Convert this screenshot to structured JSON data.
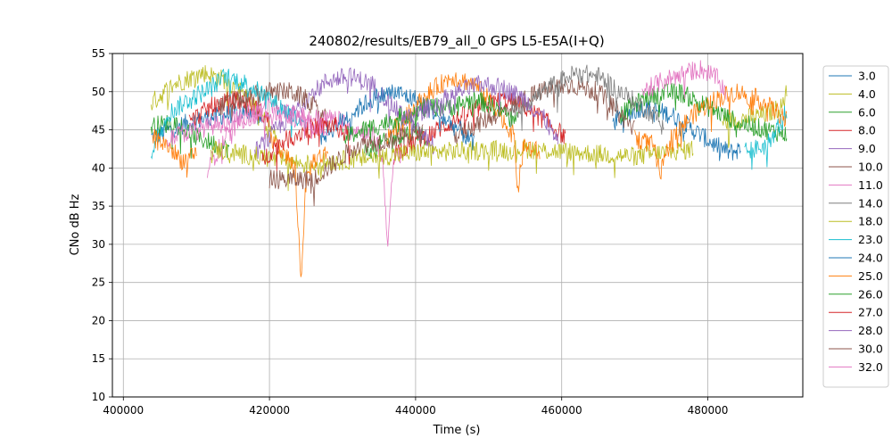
{
  "chart_data": {
    "type": "line",
    "title": "240802/results/EB79_all_0 GPS L5-E5A(I+Q)",
    "xlabel": "Time (s)",
    "ylabel": "CNo dB Hz",
    "xlim": [
      398500,
      493000
    ],
    "ylim": [
      10,
      55
    ],
    "xticks": [
      400000,
      420000,
      440000,
      460000,
      480000
    ],
    "yticks": [
      10,
      15,
      20,
      25,
      30,
      35,
      40,
      45,
      50,
      55
    ],
    "grid": true,
    "legend_position": "right-outside",
    "series": [
      {
        "name": "3.0",
        "color": "#1f77b4",
        "segments": [
          [
            [
              403800,
              44
            ],
            [
              409000,
              46
            ],
            [
              414000,
              47
            ],
            [
              418000,
              47.5
            ],
            [
              419000,
              46
            ]
          ],
          [
            [
              467000,
              46
            ],
            [
              471000,
              48
            ],
            [
              475000,
              47
            ],
            [
              478000,
              45
            ],
            [
              481000,
              43
            ],
            [
              483000,
              42
            ],
            [
              484500,
              42.5
            ]
          ]
        ]
      },
      {
        "name": "4.0",
        "color": "#bcbd22",
        "segments": [
          [
            [
              403800,
              48.5
            ],
            [
              407000,
              51
            ],
            [
              411000,
              52.5
            ],
            [
              414000,
              51.5
            ],
            [
              417000,
              49
            ],
            [
              419500,
              46
            ],
            [
              421000,
              44
            ]
          ],
          [
            [
              482000,
              46
            ],
            [
              485000,
              46.5
            ],
            [
              488000,
              47
            ],
            [
              490000,
              48
            ],
            [
              490800,
              50
            ]
          ]
        ]
      },
      {
        "name": "6.0",
        "color": "#2ca02c",
        "segments": [
          [
            [
              403800,
              45.5
            ],
            [
              407000,
              46
            ],
            [
              410000,
              44
            ],
            [
              413000,
              43
            ],
            [
              414500,
              42.5
            ]
          ],
          [
            [
              433000,
              42
            ],
            [
              437000,
              44
            ],
            [
              440000,
              45
            ],
            [
              441500,
              44
            ]
          ],
          [
            [
              468000,
              47
            ],
            [
              472000,
              49.5
            ],
            [
              476000,
              50
            ],
            [
              480000,
              48
            ],
            [
              484000,
              46
            ],
            [
              488000,
              45
            ],
            [
              490800,
              44.5
            ]
          ]
        ]
      },
      {
        "name": "8.0",
        "color": "#d62728",
        "segments": [
          [
            [
              409000,
              46
            ],
            [
              412000,
              48
            ],
            [
              415000,
              49
            ],
            [
              418000,
              48
            ],
            [
              420000,
              46
            ]
          ],
          [
            [
              437000,
              42
            ],
            [
              441000,
              44
            ],
            [
              445000,
              46
            ],
            [
              449000,
              48
            ],
            [
              452000,
              49
            ],
            [
              455000,
              48
            ],
            [
              458000,
              46
            ],
            [
              460500,
              44
            ]
          ]
        ]
      },
      {
        "name": "9.0",
        "color": "#9467bd",
        "segments": [
          [
            [
              418000,
              42
            ],
            [
              422000,
              46
            ],
            [
              425000,
              49
            ],
            [
              428000,
              51.5
            ],
            [
              431000,
              52
            ],
            [
              434000,
              51
            ],
            [
              437000,
              48
            ],
            [
              440000,
              45
            ],
            [
              442500,
              43
            ]
          ]
        ]
      },
      {
        "name": "10.0",
        "color": "#8c564b",
        "segments": [
          [
            [
              413000,
              48
            ],
            [
              416000,
              49
            ],
            [
              420000,
              50
            ],
            [
              423000,
              50
            ],
            [
              425000,
              49
            ],
            [
              428000,
              46
            ]
          ],
          [
            [
              445000,
              44
            ],
            [
              449000,
              46
            ],
            [
              453000,
              48
            ],
            [
              457000,
              50
            ],
            [
              461000,
              51
            ],
            [
              465000,
              50
            ],
            [
              468000,
              47
            ],
            [
              470000,
              45
            ]
          ]
        ]
      },
      {
        "name": "11.0",
        "color": "#e377c2",
        "segments": [
          [
            [
              411500,
              40
            ],
            [
              414000,
              44
            ],
            [
              417000,
              47
            ],
            [
              420000,
              48
            ],
            [
              423000,
              47
            ],
            [
              426000,
              46.5
            ],
            [
              429000,
              46.5
            ],
            [
              432000,
              45
            ],
            [
              434500,
              44
            ],
            [
              435500,
              41
            ],
            [
              436200,
              30
            ],
            [
              437000,
              41
            ],
            [
              438000,
              42
            ]
          ],
          [
            [
              471000,
              50
            ],
            [
              474000,
              51.5
            ],
            [
              477000,
              52.5
            ],
            [
              479000,
              53
            ],
            [
              481000,
              52
            ],
            [
              482500,
              50
            ]
          ]
        ]
      },
      {
        "name": "14.0",
        "color": "#7f7f7f",
        "segments": [
          [
            [
              453000,
              47
            ],
            [
              456000,
              49
            ],
            [
              459000,
              51
            ],
            [
              462000,
              52.5
            ],
            [
              465000,
              52
            ],
            [
              468000,
              50
            ],
            [
              471000,
              48
            ],
            [
              474000,
              46
            ]
          ]
        ]
      },
      {
        "name": "18.0",
        "color": "#bcbd22",
        "segments": [
          [
            [
              412000,
              42.5
            ],
            [
              425000,
              40.5
            ],
            [
              440000,
              42
            ],
            [
              455000,
              42.5
            ],
            [
              470000,
              41.5
            ],
            [
              478000,
              42.5
            ]
          ]
        ]
      },
      {
        "name": "23.0",
        "color": "#17becf",
        "segments": [
          [
            [
              403800,
              42
            ],
            [
              406000,
              47
            ],
            [
              409000,
              49
            ],
            [
              412000,
              50.5
            ],
            [
              414000,
              52
            ],
            [
              417000,
              51
            ],
            [
              420000,
              49
            ],
            [
              423000,
              47
            ],
            [
              425000,
              45
            ]
          ],
          [
            [
              485000,
              42
            ],
            [
              488000,
              43
            ],
            [
              490000,
              46
            ],
            [
              490800,
              47.5
            ]
          ]
        ]
      },
      {
        "name": "24.0",
        "color": "#1f77b4",
        "segments": [
          [
            [
              427000,
              44
            ],
            [
              431000,
              47
            ],
            [
              434000,
              49
            ],
            [
              437000,
              50
            ],
            [
              440000,
              49
            ],
            [
              443000,
              47
            ],
            [
              446000,
              45
            ],
            [
              448000,
              43
            ]
          ]
        ]
      },
      {
        "name": "25.0",
        "color": "#ff7f0e",
        "segments": [
          [
            [
              404000,
              44
            ],
            [
              406000,
              43
            ],
            [
              408000,
              41
            ],
            [
              410000,
              41.5
            ]
          ],
          [
            [
              420000,
              44
            ],
            [
              422000,
              42
            ],
            [
              423500,
              40
            ],
            [
              424300,
              25.5
            ],
            [
              425000,
              38
            ],
            [
              426000,
              41
            ],
            [
              428000,
              42
            ]
          ],
          [
            [
              436000,
              44
            ],
            [
              439000,
              47
            ],
            [
              442000,
              50
            ],
            [
              445000,
              52
            ],
            [
              448000,
              51
            ],
            [
              451000,
              48
            ],
            [
              453500,
              44
            ],
            [
              454000,
              37
            ],
            [
              454800,
              43
            ],
            [
              457000,
              42
            ]
          ],
          [
            [
              470000,
              44
            ],
            [
              472500,
              43
            ],
            [
              473500,
              39
            ],
            [
              475000,
              44
            ],
            [
              478000,
              47
            ],
            [
              481000,
              49
            ],
            [
              484000,
              50
            ],
            [
              487000,
              49
            ],
            [
              490000,
              47
            ],
            [
              490800,
              46
            ]
          ]
        ]
      },
      {
        "name": "26.0",
        "color": "#2ca02c",
        "segments": [
          [
            [
              430000,
              44
            ],
            [
              433000,
              45
            ],
            [
              436000,
              46
            ],
            [
              439000,
              47
            ],
            [
              442000,
              48
            ],
            [
              445000,
              48
            ],
            [
              448000,
              49
            ],
            [
              451000,
              48
            ],
            [
              454000,
              46
            ]
          ]
        ]
      },
      {
        "name": "27.0",
        "color": "#d62728",
        "segments": [
          [
            [
              419000,
              41
            ],
            [
              421000,
              43
            ],
            [
              423000,
              44
            ],
            [
              425000,
              45
            ],
            [
              427000,
              45.5
            ],
            [
              429000,
              45.5
            ],
            [
              431000,
              44
            ]
          ]
        ]
      },
      {
        "name": "28.0",
        "color": "#9467bd",
        "segments": [
          [
            [
              438000,
              46
            ],
            [
              442000,
              48
            ],
            [
              446000,
              50
            ],
            [
              449000,
              51
            ],
            [
              452000,
              50.5
            ],
            [
              455000,
              49
            ],
            [
              458000,
              46
            ],
            [
              459500,
              43
            ]
          ]
        ]
      },
      {
        "name": "30.0",
        "color": "#8c564b",
        "segments": [
          [
            [
              420000,
              38.5
            ],
            [
              426000,
              38.5
            ],
            [
              432000,
              43
            ],
            [
              438000,
              44
            ],
            [
              441000,
              44.5
            ]
          ]
        ]
      },
      {
        "name": "32.0",
        "color": "#e377c2",
        "segments": [
          [
            [
              406000,
              44
            ],
            [
              410000,
              45
            ],
            [
              414000,
              46
            ],
            [
              418000,
              47
            ],
            [
              422000,
              47
            ],
            [
              425000,
              46
            ],
            [
              428000,
              45
            ]
          ]
        ]
      }
    ]
  }
}
